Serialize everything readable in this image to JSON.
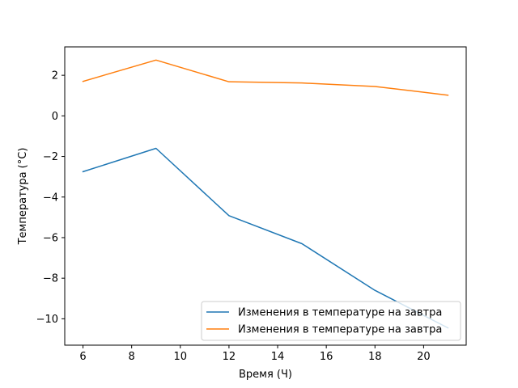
{
  "chart_data": {
    "type": "line",
    "title": "",
    "xlabel": "Время (Ч)",
    "ylabel": "Температура (°C)",
    "x": [
      6,
      9,
      12,
      15,
      18,
      21
    ],
    "xlim": [
      5.25,
      21.75
    ],
    "ylim": [
      -11.3,
      3.4
    ],
    "xticks": [
      6,
      8,
      10,
      12,
      14,
      16,
      18,
      20
    ],
    "yticks": [
      2,
      0,
      -2,
      -4,
      -6,
      -8,
      -10
    ],
    "xtick_labels": [
      "6",
      "8",
      "10",
      "12",
      "14",
      "16",
      "18",
      "20"
    ],
    "ytick_labels": [
      "2",
      "0",
      "−2",
      "−4",
      "−6",
      "−8",
      "−10"
    ],
    "grid": false,
    "legend_position": "lower-right",
    "series": [
      {
        "name": "Изменения в температуре на завтра",
        "color": "#1f77b4",
        "values": [
          -2.75,
          -1.6,
          -4.92,
          -6.3,
          -8.6,
          -10.45
        ]
      },
      {
        "name": "Изменения в температуре на завтра",
        "color": "#ff7f0e",
        "values": [
          1.7,
          2.75,
          1.68,
          1.62,
          1.45,
          1.02
        ]
      }
    ]
  }
}
